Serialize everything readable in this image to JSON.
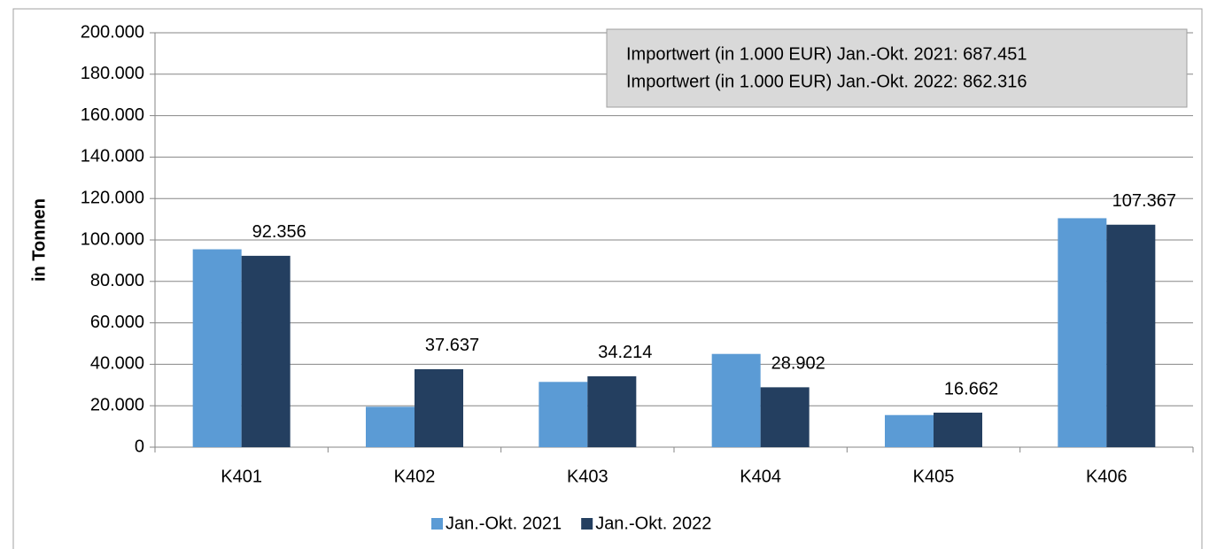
{
  "chart_data": {
    "type": "bar",
    "y_label": "in Tonnen",
    "annotations": [
      "Importwert (in 1.000 EUR) Jan.-Okt. 2021:  687.451",
      "Importwert (in 1.000 EUR) Jan.-Okt. 2022:  862.316"
    ],
    "categories": [
      "K401",
      "K402",
      "K403",
      "K404",
      "K405",
      "K406"
    ],
    "series": [
      {
        "name": "Jan.-Okt. 2021",
        "color": "#5b9bd5",
        "values": [
          95500,
          19500,
          31500,
          45000,
          15500,
          110500
        ]
      },
      {
        "name": "Jan.-Okt. 2022",
        "color": "#243f60",
        "values": [
          92356,
          37637,
          34214,
          28902,
          16662,
          107367
        ],
        "value_labels": [
          "92.356",
          "37.637",
          "34.214",
          "28.902",
          "16.662",
          "107.367"
        ]
      }
    ],
    "ylim": [
      0,
      200000
    ],
    "yticks": [
      0,
      {
        "value": 20000,
        "label": "20.000"
      },
      {
        "value": 40000,
        "label": "40.000"
      },
      {
        "value": 60000,
        "label": "60.000"
      },
      {
        "value": 80000,
        "label": "80.000"
      },
      {
        "value": 100000,
        "label": "100.000"
      },
      {
        "value": 120000,
        "label": "120.000"
      },
      {
        "value": 140000,
        "label": "140.000"
      },
      {
        "value": 160000,
        "label": "160.000"
      },
      {
        "value": 180000,
        "label": "180.000"
      },
      {
        "value": 200000,
        "label": "200.000"
      }
    ],
    "grid": true,
    "legend": "bottom"
  }
}
